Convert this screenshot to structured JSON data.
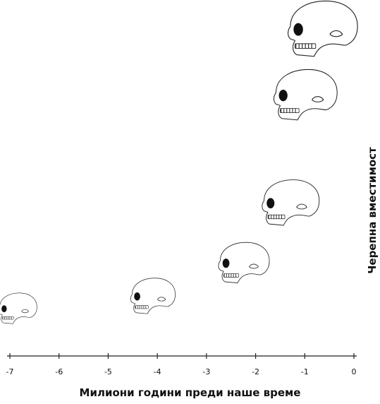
{
  "chart_data": {
    "type": "scatter",
    "xlabel": "Милиони години преди наше време",
    "ylabel": "Черепна вместимост",
    "xlim": [
      -7,
      0
    ],
    "x_ticks": [
      "-7",
      "-6",
      "-5",
      "-4",
      "-3",
      "-2",
      "-1",
      "0"
    ],
    "y_axis_scale_shown": false,
    "marker": "skull-icon",
    "points": [
      {
        "x": -6.85,
        "y": 0.05
      },
      {
        "x": -4.1,
        "y": 0.09
      },
      {
        "x": -2.25,
        "y": 0.2
      },
      {
        "x": -1.3,
        "y": 0.4
      },
      {
        "x": -1.0,
        "y": 0.76
      },
      {
        "x": -0.65,
        "y": 0.98
      }
    ],
    "grid": false
  }
}
